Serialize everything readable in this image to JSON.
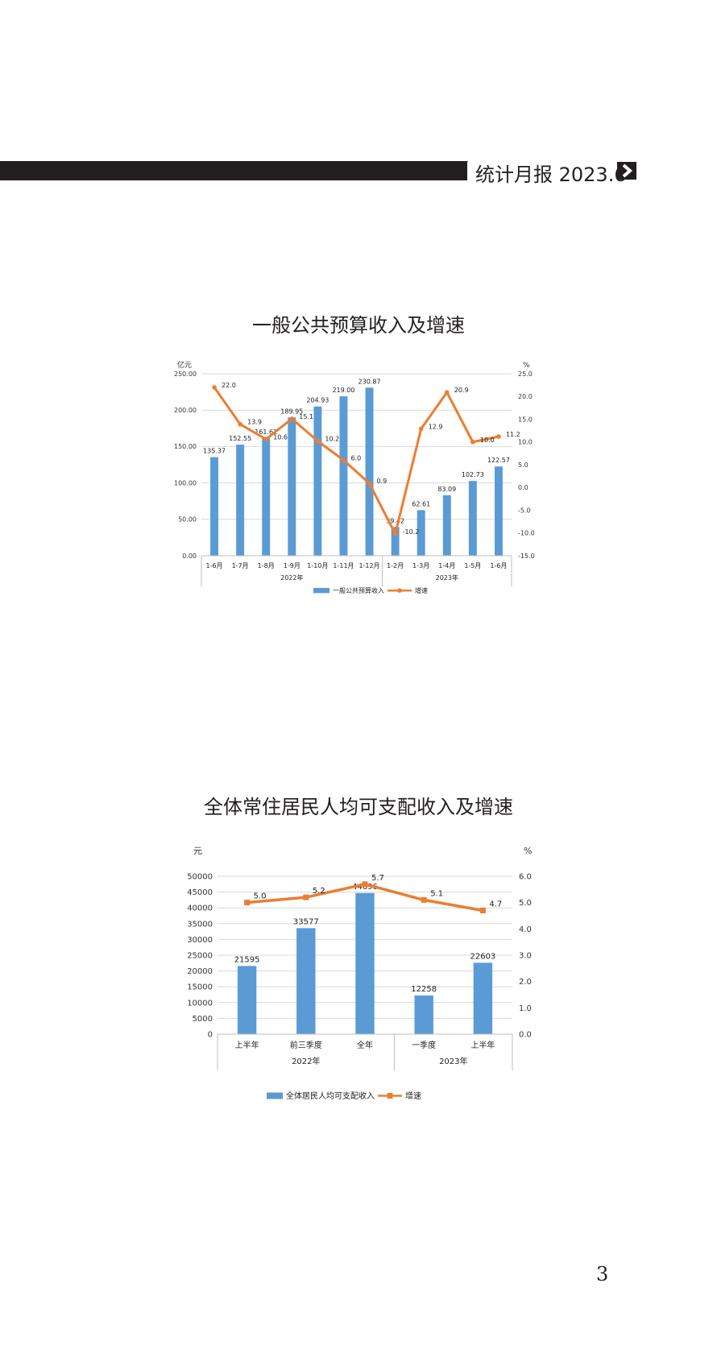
{
  "header": {
    "title": "统计月报 2023.6"
  },
  "page_number": "3",
  "colors": {
    "bar": "#5b9bd5",
    "line": "#ed7d31",
    "axis": "#bfbfbf",
    "text": "#222222",
    "header": "#231f20"
  },
  "chart_data": [
    {
      "type": "bar",
      "title": "一般公共预算收入及增速",
      "ylabel": "亿元",
      "y2label": "%",
      "ylim": [
        0,
        250
      ],
      "y_ticks": [
        "0.00",
        "50.00",
        "100.00",
        "150.00",
        "200.00",
        "250.00"
      ],
      "y2lim": [
        -15,
        25
      ],
      "y2_ticks": [
        "-15.0",
        "-10.0",
        "-5.0",
        "0.0",
        "5.0",
        "10.0",
        "15.0",
        "20.0",
        "25.0"
      ],
      "categories": [
        "1-6月",
        "1-7月",
        "1-8月",
        "1-9月",
        "1-10月",
        "1-11月",
        "1-12月",
        "1-2月",
        "1-3月",
        "1-4月",
        "1-5月",
        "1-6月"
      ],
      "groups": [
        {
          "label": "2022年",
          "count": 7
        },
        {
          "label": "2023年",
          "count": 5
        }
      ],
      "series": [
        {
          "name": "一般公共预算收入",
          "kind": "bar",
          "axis": "left",
          "values": [
            135.37,
            152.55,
            161.62,
            189.95,
            204.93,
            219.0,
            230.87,
            39.42,
            62.61,
            83.09,
            102.73,
            122.57
          ],
          "labels": [
            "135.37",
            "152.55",
            "161.62",
            "189.95",
            "204.93",
            "219.00",
            "230.87",
            "39.42",
            "62.61",
            "83.09",
            "102.73",
            "122.57"
          ]
        },
        {
          "name": "增速",
          "kind": "line",
          "axis": "right",
          "values": [
            22.0,
            13.9,
            10.6,
            15.1,
            10.2,
            6.0,
            0.9,
            -10.2,
            12.9,
            20.9,
            10.0,
            11.2
          ],
          "labels": [
            "22.0",
            "13.9",
            "10.6",
            "15.1",
            "10.2",
            "6.0",
            "0.9",
            "-10.2",
            "12.9",
            "20.9",
            "10.0",
            "11.2"
          ]
        }
      ],
      "legend": "bottom"
    },
    {
      "type": "bar",
      "title": "全体常住居民人均可支配收入及增速",
      "ylabel": "元",
      "y2label": "%",
      "ylim": [
        0,
        50000
      ],
      "y_ticks": [
        "0",
        "5000",
        "10000",
        "15000",
        "20000",
        "25000",
        "30000",
        "35000",
        "40000",
        "45000",
        "50000"
      ],
      "y2lim": [
        0,
        6
      ],
      "y2_ticks": [
        "0.0",
        "1.0",
        "2.0",
        "3.0",
        "4.0",
        "5.0",
        "6.0"
      ],
      "categories": [
        "上半年",
        "前三季度",
        "全年",
        "一季度",
        "上半年"
      ],
      "groups": [
        {
          "label": "2022年",
          "count": 3
        },
        {
          "label": "2023年",
          "count": 2
        }
      ],
      "series": [
        {
          "name": "全体居民人均可支配收入",
          "kind": "bar",
          "axis": "left",
          "values": [
            21595,
            33577,
            44696,
            12258,
            22603
          ],
          "labels": [
            "21595",
            "33577",
            "44696",
            "12258",
            "22603"
          ]
        },
        {
          "name": "增速",
          "kind": "line",
          "axis": "right",
          "values": [
            5.0,
            5.2,
            5.7,
            5.1,
            4.7
          ],
          "labels": [
            "5.0",
            "5.2",
            "5.7",
            "5.1",
            "4.7"
          ]
        }
      ],
      "legend": "bottom"
    }
  ]
}
